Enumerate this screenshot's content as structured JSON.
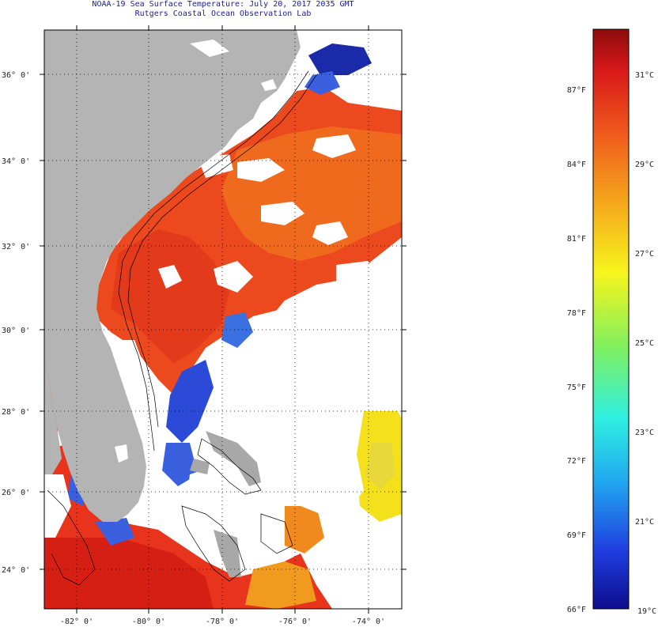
{
  "title": {
    "line1": "NOAA-19 Sea Surface Temperature:  July 20, 2017 2035 GMT",
    "line2": "Rutgers Coastal Ocean Observation Lab"
  },
  "map": {
    "lat_labels": [
      "36° 0'",
      "34° 0'",
      "32° 0'",
      "30° 0'",
      "28° 0'",
      "26° 0'",
      "24° 0'"
    ],
    "lon_labels": [
      "-82° 0'",
      "-80° 0'",
      "-78° 0'",
      "-76° 0'",
      "-74° 0'"
    ],
    "lat_range": [
      23,
      37
    ],
    "lon_range": [
      -83,
      -73
    ],
    "colors": {
      "land": "#b4b4b4",
      "cloud": "#ffffff",
      "warm": "#e8341c",
      "hot": "#d61f14",
      "orange": "#f07a1e",
      "yellow": "#f5e51c",
      "cool": "#3a4fe0",
      "cold": "#1a1aa0"
    }
  },
  "colorbar": {
    "f_labels": [
      "87°F",
      "84°F",
      "81°F",
      "78°F",
      "75°F",
      "72°F",
      "69°F",
      "66°F"
    ],
    "c_labels": [
      "31°C",
      "29°C",
      "27°C",
      "25°C",
      "23°C",
      "21°C",
      "19°C"
    ],
    "stops": [
      "#0d0d8c",
      "#1f3ee0",
      "#20a8f0",
      "#2ff0e0",
      "#7ff060",
      "#f7f51c",
      "#f5a81c",
      "#f05a1c",
      "#d8181a",
      "#8c0c0c"
    ]
  }
}
